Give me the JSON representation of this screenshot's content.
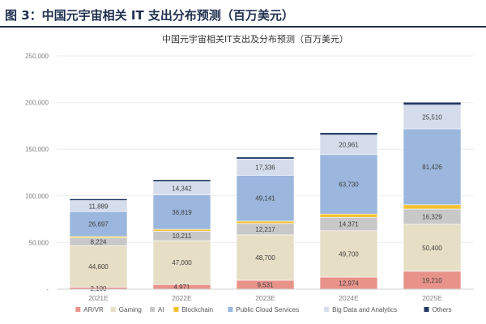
{
  "figure_label": "图 3：中国元宇宙相关 IT 支出分布预测（百万美元）",
  "chart_data": {
    "type": "bar",
    "stacked": true,
    "title": "中国元宇宙相关IT支出及分布预测（百万美元）",
    "categories": [
      "2021E",
      "2022E",
      "2023E",
      "2024E",
      "2025E"
    ],
    "ylim": [
      0,
      250000
    ],
    "yticks": [
      0,
      50000,
      100000,
      150000,
      200000,
      250000
    ],
    "ytick_labels": [
      "-",
      "50,000",
      "100,000",
      "150,000",
      "200,000",
      "250,000"
    ],
    "legend_position": "bottom",
    "series": [
      {
        "name": "AR/VR",
        "color": "#e8938a",
        "values": [
          2100,
          4971,
          9531,
          12974,
          19210
        ],
        "labels": [
          "2,100",
          "4,971",
          "9,531",
          "12,974",
          "19,210"
        ]
      },
      {
        "name": "Gaming",
        "color": "#e6dec5",
        "values": [
          44600,
          47000,
          48700,
          49700,
          50400
        ],
        "labels": [
          "44,600",
          "47,000",
          "48,700",
          "49,700",
          "50,400"
        ]
      },
      {
        "name": "AI",
        "color": "#c8c8c8",
        "values": [
          8224,
          10211,
          12217,
          14371,
          16329
        ],
        "labels": [
          "8,224",
          "10,211",
          "12,217",
          "14,371",
          "16,329"
        ]
      },
      {
        "name": "Blockchain",
        "color": "#f3c12e",
        "values": [
          1500,
          2000,
          2500,
          3500,
          4500
        ],
        "labels": []
      },
      {
        "name": "Public Cloud Services",
        "color": "#9bb7dd",
        "values": [
          26697,
          36819,
          49141,
          63730,
          81426
        ],
        "labels": [
          "26,697",
          "36,819",
          "49,141",
          "63,730",
          "81,426"
        ]
      },
      {
        "name": "Big Data and Analytics",
        "color": "#d5ddec",
        "values": [
          11889,
          14342,
          17336,
          20961,
          25510
        ],
        "labels": [
          "11,889",
          "14,342",
          "17,336",
          "20,961",
          "25,510"
        ]
      },
      {
        "name": "Others",
        "color": "#1f3864",
        "values": [
          1800,
          2000,
          2200,
          2500,
          3000
        ],
        "labels": []
      }
    ]
  }
}
